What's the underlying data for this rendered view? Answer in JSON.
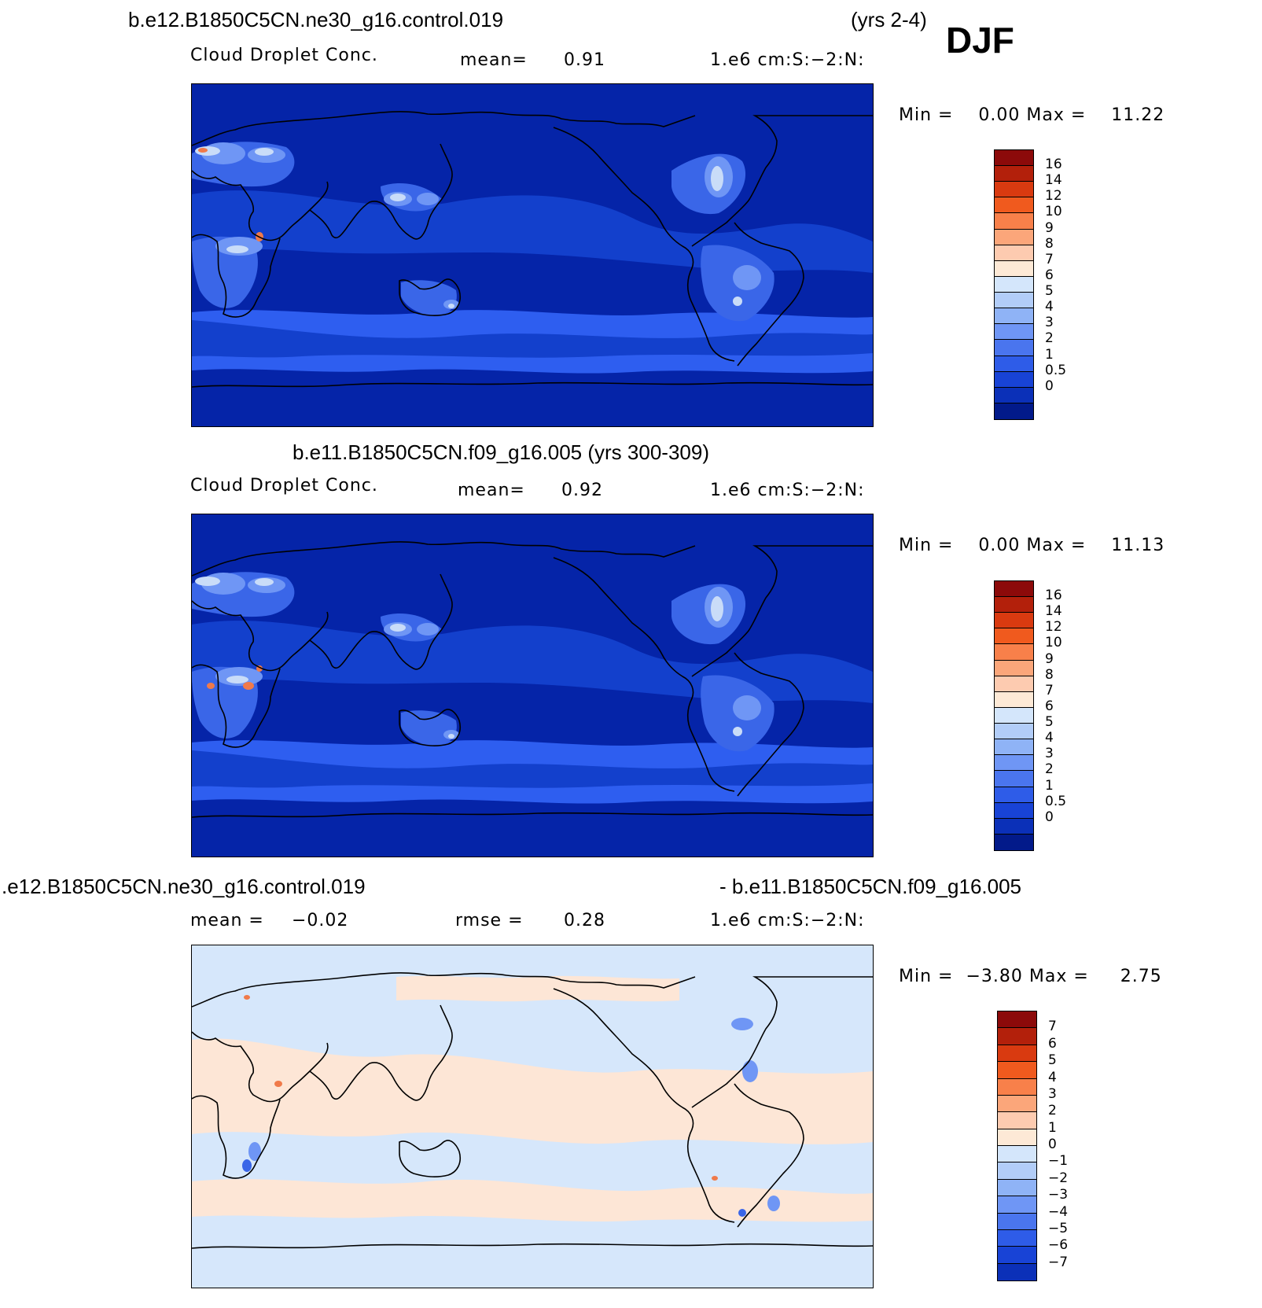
{
  "colors": {
    "ocean_deep": "#0524a8",
    "ocean_mid": "#1340cc",
    "band": "#2e5ef0",
    "land_low": "#3a66e8",
    "land_mid": "#6f96f5",
    "land_high": "#c9dcf8",
    "hot": "#f07a4a",
    "diff_neg": "#d6e7fb",
    "diff_pos": "#fde6d6"
  },
  "scale_abs": {
    "colors": [
      "#8c0a0a",
      "#b3200b",
      "#d93a10",
      "#f05a1e",
      "#f8804a",
      "#fba67a",
      "#fdcbb0",
      "#fde9d6",
      "#d4e6fb",
      "#b2cdf8",
      "#8fb3f6",
      "#6f96f5",
      "#4a75ee",
      "#2e5ce8",
      "#1843d6",
      "#0b30b8",
      "#021a8a"
    ],
    "labels": [
      "16",
      "14",
      "12",
      "10",
      "9",
      "8",
      "7",
      "6",
      "5",
      "4",
      "3",
      "2",
      "1",
      "0.5",
      "0"
    ]
  },
  "scale_diff": {
    "colors": [
      "#8c0a0a",
      "#b3200b",
      "#d93a10",
      "#f05a1e",
      "#f8804a",
      "#fba67a",
      "#fdcbb0",
      "#fde9d6",
      "#d4e6fb",
      "#b2cdf8",
      "#8fb3f6",
      "#6f96f5",
      "#4a75ee",
      "#2e5ce8",
      "#1843d6",
      "#0b30b8"
    ],
    "labels": [
      "7",
      "6",
      "5",
      "4",
      "3",
      "2",
      "1",
      "0",
      "−1",
      "−2",
      "−3",
      "−4",
      "−5",
      "−6",
      "−7"
    ]
  },
  "panel1": {
    "title_left": "b.e12.B1850C5CN.ne30_g16.control.019",
    "title_right": "(yrs 2-4)",
    "season": "DJF",
    "variable": "Cloud Droplet Conc.",
    "mean_label": "mean=",
    "mean_value": "0.91",
    "units": "1.e6 cm:S:−2:N:",
    "minmax": "Min =    0.00 Max =    11.22"
  },
  "panel2": {
    "title": "b.e11.B1850C5CN.f09_g16.005 (yrs 300-309)",
    "variable": "Cloud Droplet Conc.",
    "mean_label": "mean=",
    "mean_value": "0.92",
    "units": "1.e6 cm:S:−2:N:",
    "minmax": "Min =    0.00 Max =    11.13"
  },
  "panel3": {
    "title_left": ".e12.B1850C5CN.ne30_g16.control.019",
    "title_right": "- b.e11.B1850C5CN.f09_g16.005",
    "mean_label": "mean =",
    "mean_value": "−0.02",
    "rmse_label": "rmse =",
    "rmse_value": "0.28",
    "units": "1.e6 cm:S:−2:N:",
    "minmax": "Min =  −3.80 Max =     2.75"
  }
}
